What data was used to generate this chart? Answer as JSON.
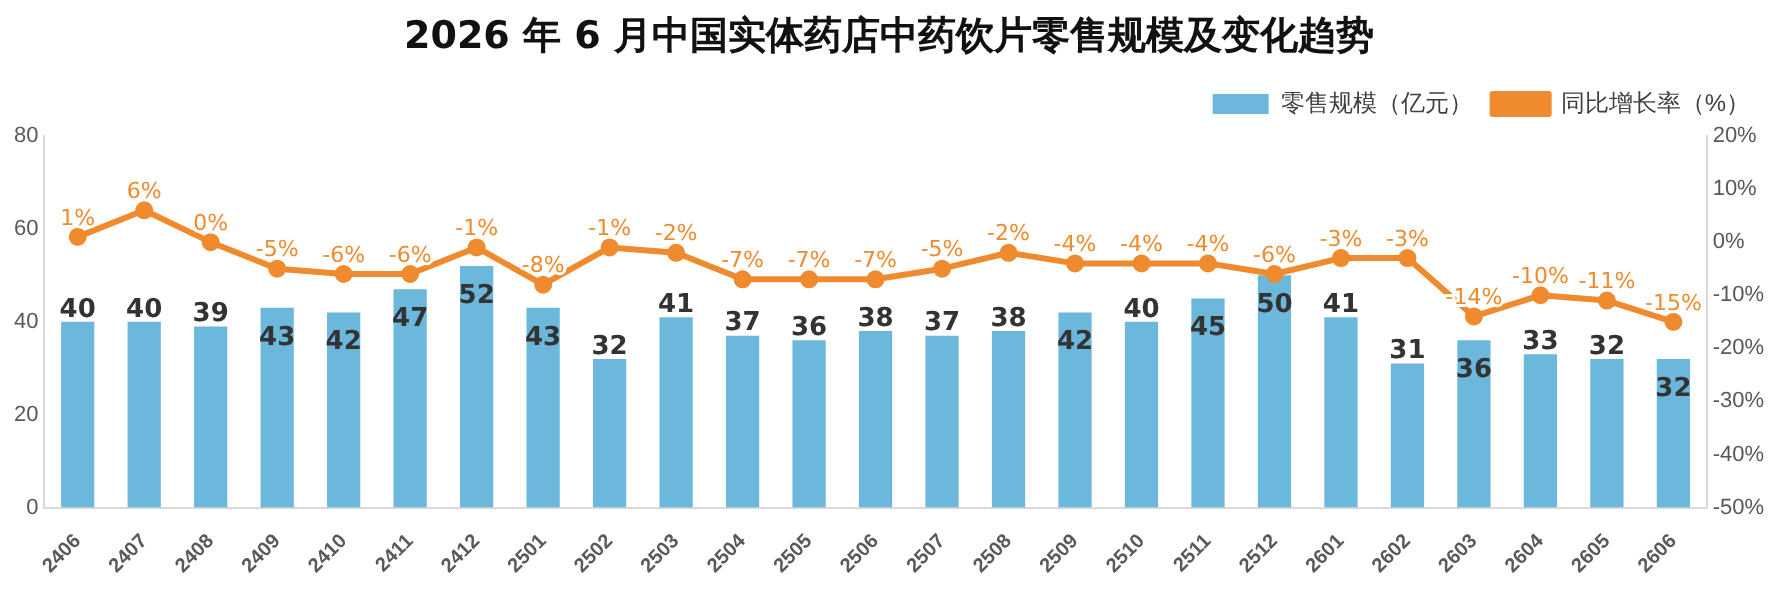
{
  "chart_data": {
    "type": "bar",
    "title": "2026 年 6 月中国实体药店中药饮片零售规模及变化趋势",
    "categories": [
      "2406",
      "2407",
      "2408",
      "2409",
      "2410",
      "2411",
      "2412",
      "2501",
      "2502",
      "2503",
      "2504",
      "2505",
      "2506",
      "2507",
      "2508",
      "2509",
      "2510",
      "2511",
      "2512",
      "2601",
      "2602",
      "2603",
      "2604",
      "2605",
      "2606"
    ],
    "series": [
      {
        "name": "零售规模（亿元）",
        "color": "#6cb8dc",
        "values": [
          40,
          40,
          39,
          43,
          42,
          47,
          52,
          43,
          32,
          41,
          37,
          36,
          38,
          37,
          38,
          42,
          40,
          45,
          50,
          41,
          31,
          36,
          33,
          32,
          32
        ],
        "value_labels": [
          "40",
          "40",
          "39",
          "43",
          "42",
          "47",
          "52",
          "43",
          "32",
          "41",
          "37",
          "36",
          "38",
          "37",
          "38",
          "42",
          "40",
          "45",
          "50",
          "41",
          "31",
          "36",
          "33",
          "32",
          "32"
        ]
      },
      {
        "name": "同比增长率（%）",
        "type": "line",
        "axis": "y2",
        "color": "#f08a2e",
        "values": [
          1,
          6,
          0,
          -5,
          -6,
          -6,
          -1,
          -8,
          -1,
          -2,
          -7,
          -7,
          -7,
          -5,
          -2,
          -4,
          -4,
          -4,
          -6,
          -3,
          -3,
          -14,
          -10,
          -11,
          -15
        ],
        "value_labels": [
          "1%",
          "6%",
          "0%",
          "-5%",
          "-6%",
          "-6%",
          "-1%",
          "-8%",
          "-1%",
          "-2%",
          "-7%",
          "-7%",
          "-7%",
          "-5%",
          "-2%",
          "-4%",
          "-4%",
          "-4%",
          "-6%",
          "-3%",
          "-3%",
          "-14%",
          "-10%",
          "-11%",
          "-15%"
        ]
      }
    ],
    "ylim": [
      0,
      80
    ],
    "yticks": [
      0,
      20,
      40,
      60,
      80
    ],
    "y2lim": [
      -50,
      20
    ],
    "y2ticks": [
      {
        "value": -50,
        "label": "-50%"
      },
      {
        "value": -40,
        "label": "-40%"
      },
      {
        "value": -30,
        "label": "-30%"
      },
      {
        "value": -20,
        "label": "-20%"
      },
      {
        "value": -10,
        "label": "-10%"
      },
      {
        "value": 0,
        "label": "0%"
      },
      {
        "value": 10,
        "label": "10%"
      },
      {
        "value": 20,
        "label": "20%"
      }
    ],
    "grid": false,
    "legend": "top right",
    "marker": "circle",
    "line_style": "solid"
  }
}
